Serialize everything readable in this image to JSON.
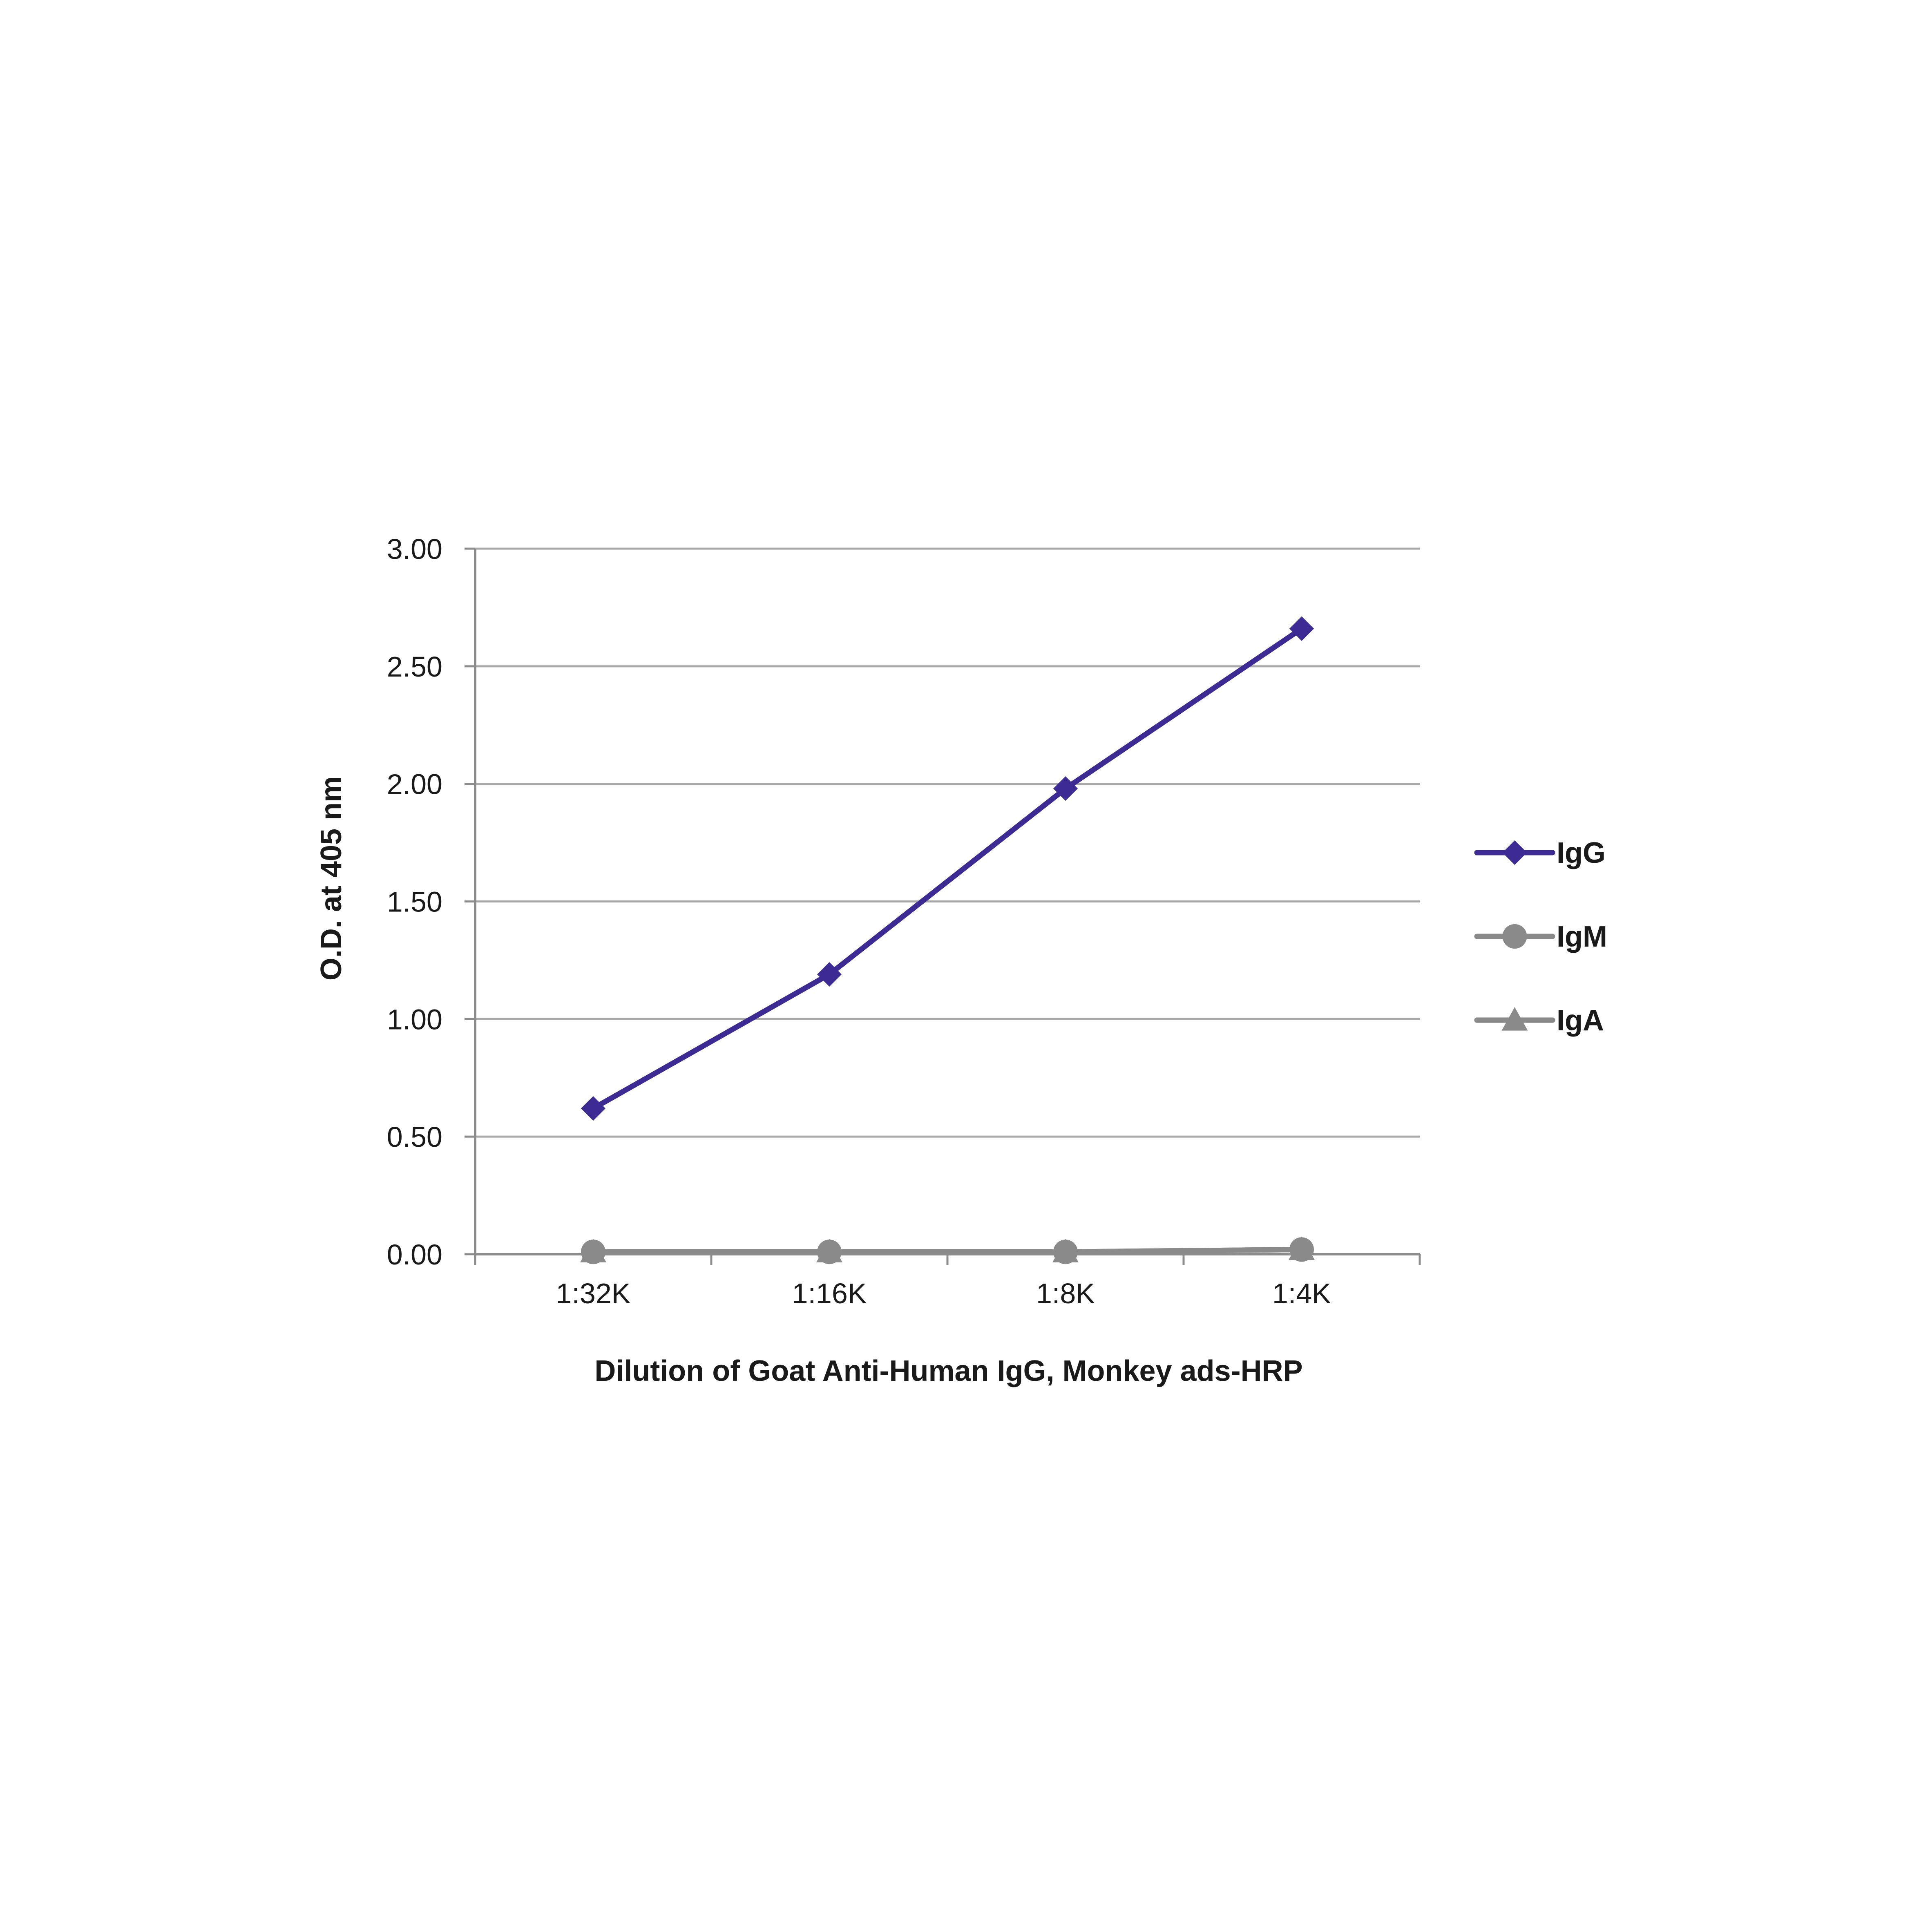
{
  "chart_data": {
    "type": "line",
    "title": "",
    "xlabel": "Dilution of Goat Anti-Human IgG, Monkey ads-HRP",
    "ylabel": "O.D. at 405 nm",
    "categories": [
      "1:32K",
      "1:16K",
      "1:8K",
      "1:4K"
    ],
    "ylim": [
      0,
      3
    ],
    "yticks": [
      0,
      0.5,
      1,
      1.5,
      2,
      2.5,
      3
    ],
    "ytick_labels": [
      "0.00",
      "0.50",
      "1.00",
      "1.50",
      "2.00",
      "2.50",
      "3.00"
    ],
    "grid": "horizontal",
    "legend_position": "right",
    "series": [
      {
        "name": "IgG",
        "values": [
          0.62,
          1.19,
          1.98,
          2.66
        ],
        "color": "#3d2a92",
        "marker": "diamond"
      },
      {
        "name": "IgM",
        "values": [
          0.01,
          0.01,
          0.01,
          0.02
        ],
        "color": "#8a8a8a",
        "marker": "circle"
      },
      {
        "name": "IgA",
        "values": [
          0.01,
          0.01,
          0.01,
          0.02
        ],
        "color": "#8a8a8a",
        "marker": "triangle"
      }
    ]
  }
}
